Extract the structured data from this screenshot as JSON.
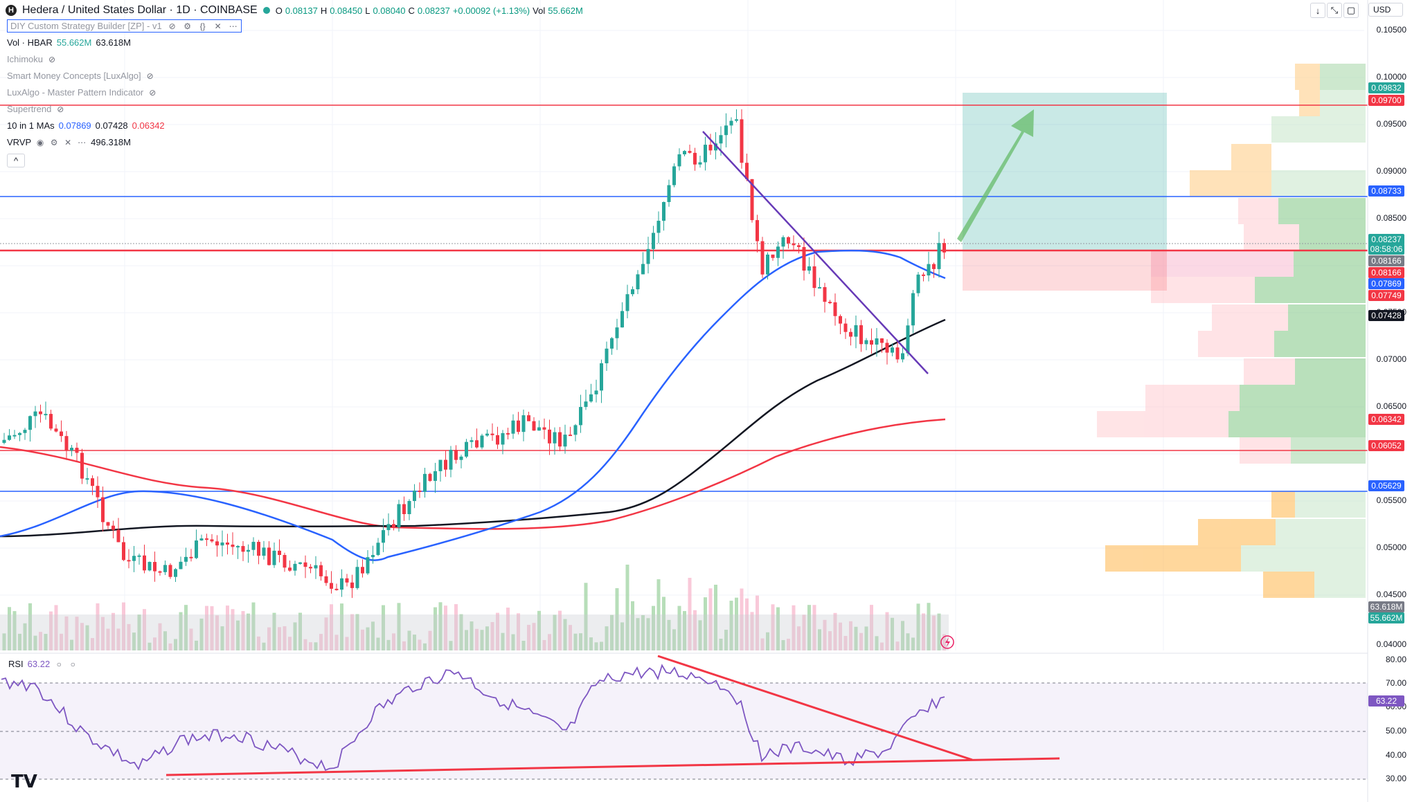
{
  "header": {
    "coin_icon": "H",
    "symbol_title": "Hedera / United States Dollar · 1D · COINBASE",
    "ohlc": {
      "o_label": "O",
      "o": "0.08137",
      "h_label": "H",
      "h": "0.08450",
      "l_label": "L",
      "l": "0.08040",
      "c_label": "C",
      "c": "0.08237",
      "change": "+0.00092 (+1.13%)",
      "vol_label": "Vol",
      "vol": "55.662M"
    },
    "currency": "USD"
  },
  "indicators": {
    "diy": "DIY Custom Strategy Builder [ZP] - v1",
    "vol": {
      "label": "Vol · HBAR",
      "v1": "55.662M",
      "v2": "63.618M"
    },
    "ichimoku": "Ichimoku",
    "smc": "Smart Money Concepts [LuxAlgo]",
    "luxalgo": "LuxAlgo - Master Pattern Indicator",
    "supertrend": "Supertrend",
    "mas": {
      "label": "10 in 1 MAs",
      "v1": "0.07869",
      "v2": "0.07428",
      "v3": "0.06342"
    },
    "vrvp": {
      "label": "VRVP",
      "value": "496.318M"
    },
    "collapse": "^"
  },
  "price_axis": [
    "0.10500",
    "0.10000",
    "0.09500",
    "0.09000",
    "0.08500",
    "0.07500",
    "0.07000",
    "0.06500",
    "0.05500",
    "0.05000",
    "0.04500",
    "0.04000"
  ],
  "price_tags": [
    {
      "text": "0.09832",
      "color": "#26a69a"
    },
    {
      "text": "0.09700",
      "color": "#f23645"
    },
    {
      "text": "0.08733",
      "color": "#2962ff"
    },
    {
      "text": "0.08237",
      "color": "#26a69a"
    },
    {
      "text": "08:58:06",
      "color": "#26a69a"
    },
    {
      "text": "0.08166",
      "color": "#787b86"
    },
    {
      "text": "0.08166",
      "color": "#f23645"
    },
    {
      "text": "0.07869",
      "color": "#2962ff"
    },
    {
      "text": "0.07749",
      "color": "#f23645"
    },
    {
      "text": "0.07428",
      "color": "#131722"
    },
    {
      "text": "0.06342",
      "color": "#f23645"
    },
    {
      "text": "0.06052",
      "color": "#f23645"
    },
    {
      "text": "0.05629",
      "color": "#2962ff"
    },
    {
      "text": "63.618M",
      "color": "#787b86"
    },
    {
      "text": "55.662M",
      "color": "#26a69a"
    }
  ],
  "rsi": {
    "label": "RSI",
    "value": "63.22",
    "axis": [
      "80.00",
      "70.00",
      "60.00",
      "50.00",
      "40.00",
      "30.00"
    ],
    "tag": "63.22"
  },
  "icons": {
    "eye": "eye-off-icon",
    "settings": "gear-icon",
    "source": "code-icon",
    "close": "close-icon",
    "more": "more-icon"
  },
  "logo": "TV"
}
